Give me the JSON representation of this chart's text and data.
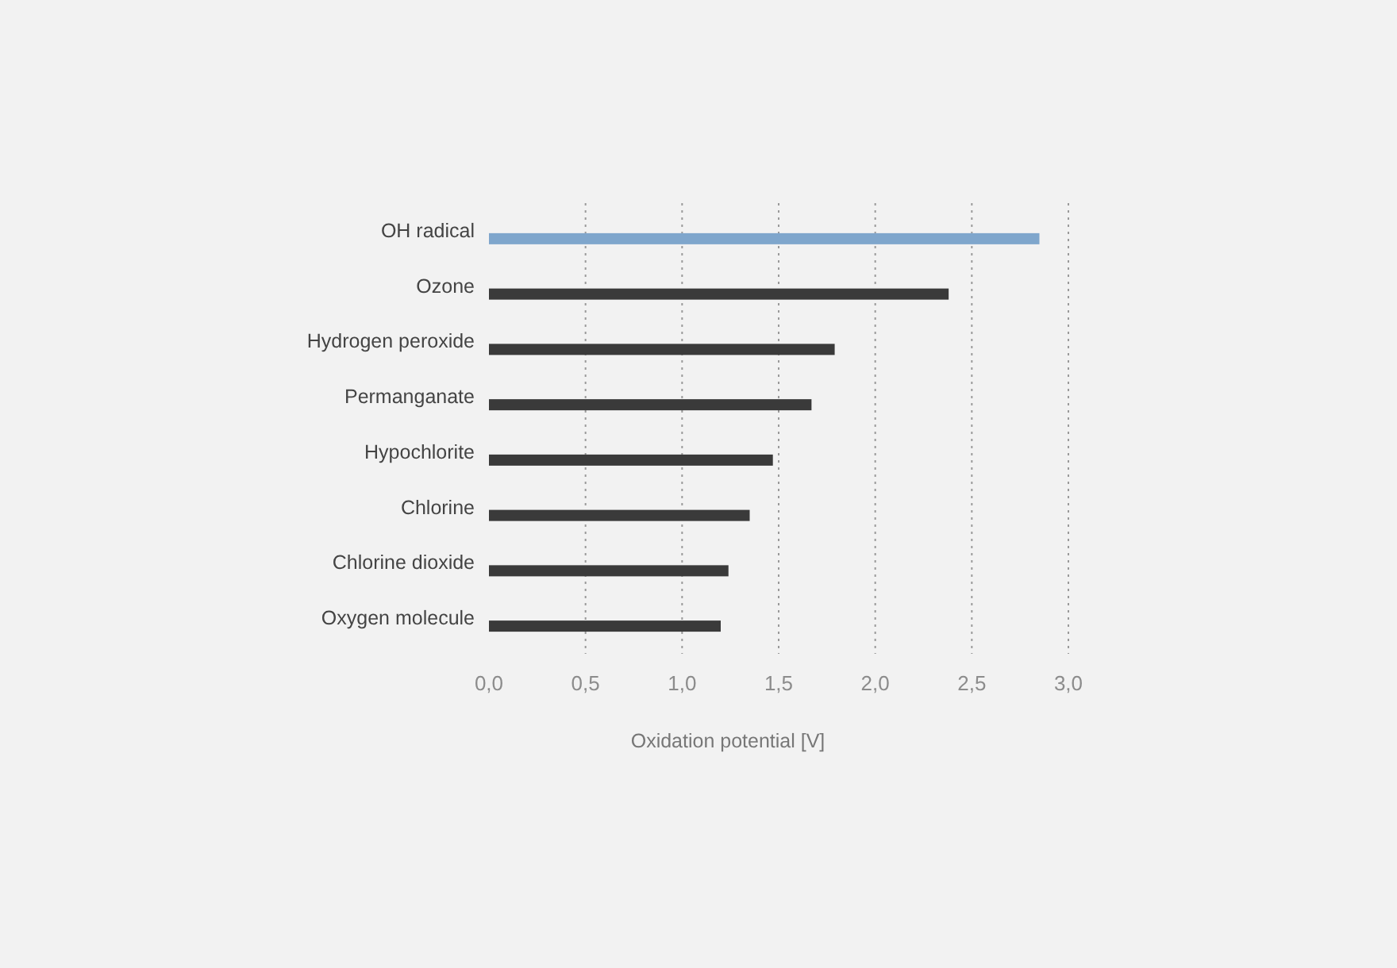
{
  "chart_data": {
    "type": "bar",
    "orientation": "horizontal",
    "xlabel": "Oxidation potential  [V]",
    "categories": [
      "OH radical",
      "Ozone",
      "Hydrogen peroxide",
      "Permanganate",
      "Hypochlorite",
      "Chlorine",
      "Chlorine dioxide",
      "Oxygen molecule"
    ],
    "values": [
      2.85,
      2.38,
      1.79,
      1.67,
      1.47,
      1.35,
      1.24,
      1.2
    ],
    "colors": [
      "#7fa6cc",
      "#3a3a3a",
      "#3a3a3a",
      "#3a3a3a",
      "#3a3a3a",
      "#3a3a3a",
      "#3a3a3a",
      "#3a3a3a"
    ],
    "xlim": [
      0,
      3
    ],
    "xticks": [
      {
        "value": 0,
        "label": "0,0"
      },
      {
        "value": 0.5,
        "label": "0,5"
      },
      {
        "value": 1,
        "label": "1,0"
      },
      {
        "value": 1.5,
        "label": "1,5"
      },
      {
        "value": 2,
        "label": "2,0"
      },
      {
        "value": 2.5,
        "label": "2,5"
      },
      {
        "value": 3,
        "label": "3,0"
      }
    ],
    "grid": "x"
  }
}
